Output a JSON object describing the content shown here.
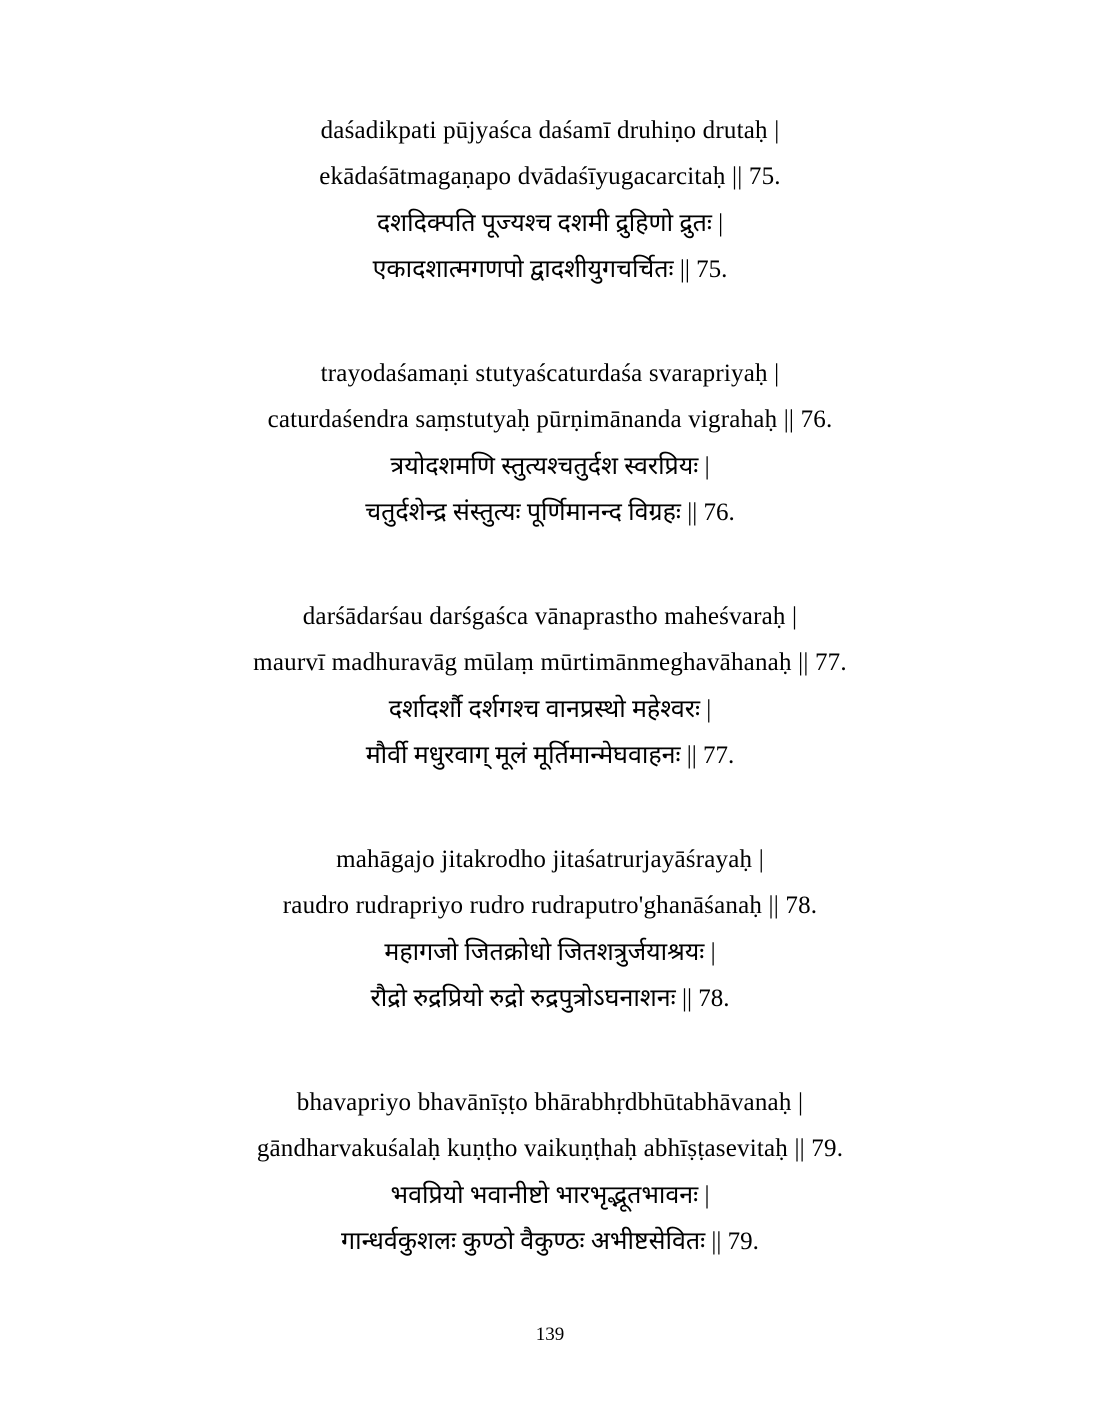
{
  "pageNumber": "139",
  "verses": [
    {
      "roman1": "daśadikpati pūjyaśca daśamī druhiṇo drutaḥ |",
      "roman2": "ekādaśātmagaṇapo dvādaśīyugacarcitaḥ || 75.",
      "dev1": "दशदिक्पति पूज्यश्च दशमी द्रुहिणो द्रुतः |",
      "dev2": "एकादशात्मगणपो द्वादशीयुगचर्चितः || 75."
    },
    {
      "roman1": "trayodaśamaṇi stutyaścaturdaśa svarapriyaḥ |",
      "roman2": "caturdaśendra saṃstutyaḥ pūrṇimānanda vigrahaḥ || 76.",
      "dev1": "त्रयोदशमणि स्तुत्यश्चतुर्दश स्वरप्रियः |",
      "dev2": "चतुर्दशेन्द्र संस्तुत्यः पूर्णिमानन्द विग्रहः || 76."
    },
    {
      "roman1": "darśādarśau darśgaśca vānaprastho maheśvaraḥ |",
      "roman2": "maurvī madhuravāg mūlaṃ mūrtimānmeghavāhanaḥ || 77.",
      "dev1": "दर्शादर्शौ दर्शगश्च वानप्रस्थो महेश्वरः |",
      "dev2": "मौर्वी मधुरवाग् मूलं मूर्तिमान्मेघवाहनः || 77."
    },
    {
      "roman1": "mahāgajo jitakrodho jitaśatrurjayāśrayaḥ |",
      "roman2": "raudro rudrapriyo rudro rudraputro'ghanāśanaḥ || 78.",
      "dev1": "महागजो जितक्रोधो जितशत्रुर्जयाश्रयः |",
      "dev2": "रौद्रो रुद्रप्रियो रुद्रो रुद्रपुत्रोऽघनाशनः || 78."
    },
    {
      "roman1": "bhavapriyo bhavānīṣṭo bhārabhṛdbhūtabhāvanaḥ |",
      "roman2": "gāndharvakuśalaḥ kuṇṭho vaikuṇṭhaḥ abhīṣṭasevitaḥ || 79.",
      "dev1": "भवप्रियो भवानीष्टो भारभृद्भूतभावनः |",
      "dev2": "गान्धर्वकुशलः कुण्ठो वैकुण्ठः अभीष्टसेवितः || 79."
    }
  ]
}
